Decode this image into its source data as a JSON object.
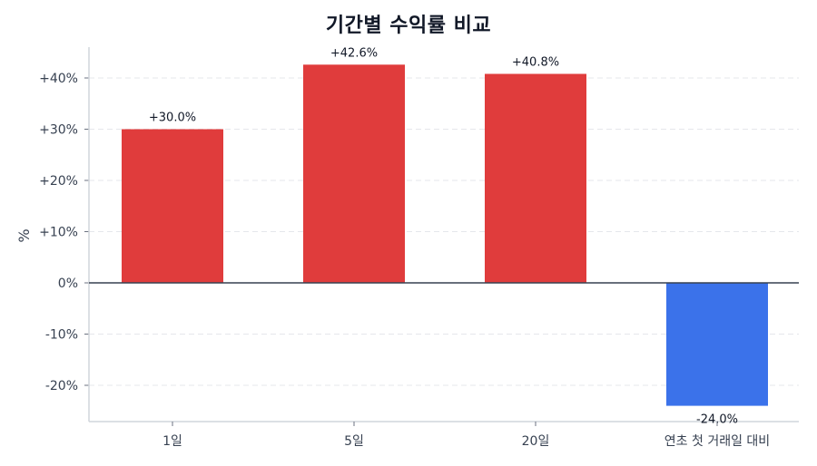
{
  "title": "기간별 수익률 비교",
  "chart_data": {
    "type": "bar",
    "title": "기간별 수익률 비교",
    "xlabel": "",
    "ylabel": "%",
    "categories": [
      "1일",
      "5일",
      "20일",
      "연초 첫 거래일 대비"
    ],
    "values": [
      30.0,
      42.6,
      40.8,
      -24.0
    ],
    "value_labels": [
      "+30.0%",
      "+42.6%",
      "+40.8%",
      "-24.0%"
    ],
    "ylim": [
      -27,
      47
    ],
    "yticks": [
      -20,
      -10,
      0,
      10,
      20,
      30,
      40
    ],
    "ytick_labels": [
      "-20%",
      "-10%",
      "0%",
      "+10%",
      "+20%",
      "+30%",
      "+40%"
    ],
    "grid": "horizontal dashed",
    "legend": "none",
    "colors": {
      "positive": "#e03c3c",
      "negative": "#3b72ea",
      "zero_line": "#374151",
      "grid": "#e5e7eb",
      "axis": "#d1d5db"
    }
  }
}
